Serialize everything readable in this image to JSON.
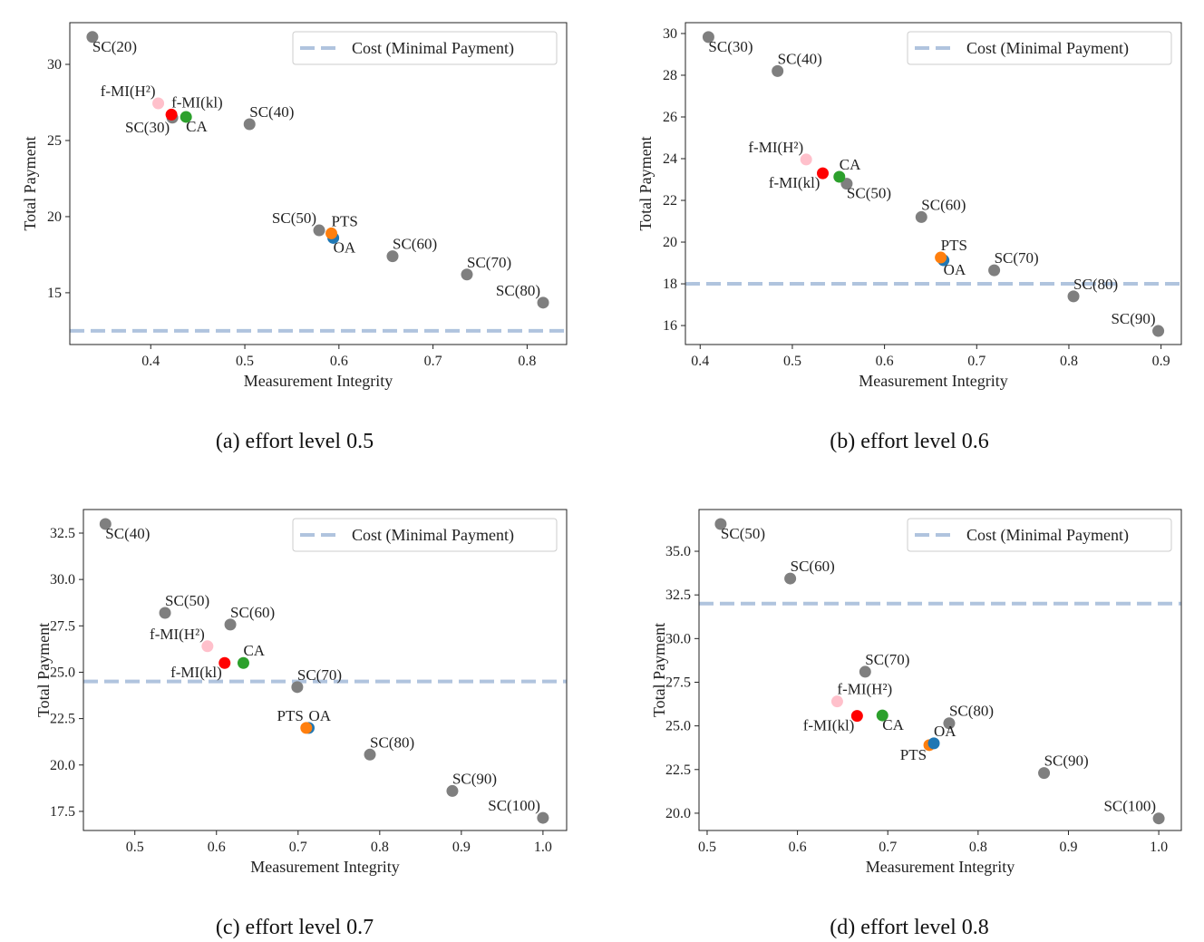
{
  "colors": {
    "SC": "#7f7f7f",
    "fMI_H2": "#ffc0cb",
    "fMI_kl": "#ff0000",
    "CA": "#2ca02c",
    "PTS": "#ff7f0e",
    "OA": "#1f77b4",
    "cost": "#b0c4de"
  },
  "chart_data": [
    {
      "type": "scatter",
      "caption": "(a)  effort level 0.5",
      "xlabel": "Measurement Integrity",
      "ylabel": "Total Payment",
      "xlim": [
        0.314,
        0.842
      ],
      "ylim": [
        11.6,
        32.74
      ],
      "xticks": [
        "0.4",
        "0.5",
        "0.6",
        "0.7",
        "0.8"
      ],
      "yticks": [
        "15",
        "20",
        "25",
        "30"
      ],
      "grid": false,
      "legend": {
        "label": "Cost (Minimal Payment)",
        "placement": "top-right"
      },
      "cost": 12.5,
      "points": [
        {
          "label": "SC(20)",
          "series": "SC",
          "x": 0.338,
          "y": 31.8
        },
        {
          "label": "SC(30)",
          "series": "SC",
          "x": 0.423,
          "y": 26.5
        },
        {
          "label": "SC(40)",
          "series": "SC",
          "x": 0.505,
          "y": 26.07
        },
        {
          "label": "SC(50)",
          "series": "SC",
          "x": 0.579,
          "y": 19.1
        },
        {
          "label": "SC(60)",
          "series": "SC",
          "x": 0.657,
          "y": 17.4
        },
        {
          "label": "SC(70)",
          "series": "SC",
          "x": 0.736,
          "y": 16.2
        },
        {
          "label": "SC(80)",
          "series": "SC",
          "x": 0.817,
          "y": 14.35
        },
        {
          "label": "f-MI(H²)",
          "series": "fMI_H2",
          "x": 0.408,
          "y": 27.44
        },
        {
          "label": "f-MI(kl)",
          "series": "fMI_kl",
          "x": 0.422,
          "y": 26.7
        },
        {
          "label": "CA",
          "series": "CA",
          "x": 0.4375,
          "y": 26.55
        },
        {
          "label": "OA",
          "series": "OA",
          "x": 0.594,
          "y": 18.6
        },
        {
          "label": "PTS",
          "series": "PTS",
          "x": 0.592,
          "y": 18.9
        }
      ]
    },
    {
      "type": "scatter",
      "caption": "(b)  effort level 0.6",
      "xlabel": "Measurement Integrity",
      "ylabel": "Total Payment",
      "xlim": [
        0.384,
        0.922
      ],
      "ylim": [
        15.09,
        30.52
      ],
      "xticks": [
        "0.4",
        "0.5",
        "0.6",
        "0.7",
        "0.8",
        "0.9"
      ],
      "yticks": [
        "16",
        "18",
        "20",
        "22",
        "24",
        "26",
        "28",
        "30"
      ],
      "grid": false,
      "legend": {
        "label": "Cost (Minimal Payment)",
        "placement": "top-right"
      },
      "cost": 18,
      "points": [
        {
          "label": "SC(30)",
          "series": "SC",
          "x": 0.409,
          "y": 29.83
        },
        {
          "label": "SC(40)",
          "series": "SC",
          "x": 0.484,
          "y": 28.2
        },
        {
          "label": "SC(50)",
          "series": "SC",
          "x": 0.559,
          "y": 22.8
        },
        {
          "label": "SC(60)",
          "series": "SC",
          "x": 0.64,
          "y": 21.2
        },
        {
          "label": "SC(70)",
          "series": "SC",
          "x": 0.719,
          "y": 18.65
        },
        {
          "label": "SC(80)",
          "series": "SC",
          "x": 0.805,
          "y": 17.4
        },
        {
          "label": "SC(90)",
          "series": "SC",
          "x": 0.897,
          "y": 15.74
        },
        {
          "label": "f-MI(H²)",
          "series": "fMI_H2",
          "x": 0.515,
          "y": 23.96
        },
        {
          "label": "f-MI(kl)",
          "series": "fMI_kl",
          "x": 0.533,
          "y": 23.3
        },
        {
          "label": "CA",
          "series": "CA",
          "x": 0.551,
          "y": 23.13
        },
        {
          "label": "OA",
          "series": "OA",
          "x": 0.664,
          "y": 19.13
        },
        {
          "label": "PTS",
          "series": "PTS",
          "x": 0.661,
          "y": 19.26
        }
      ]
    },
    {
      "type": "scatter",
      "caption": "(c)  effort level 0.7",
      "xlabel": "Measurement Integrity",
      "ylabel": "Total Payment",
      "xlim": [
        0.437,
        1.029
      ],
      "ylim": [
        16.47,
        33.77
      ],
      "xticks": [
        "0.5",
        "0.6",
        "0.7",
        "0.8",
        "0.9",
        "1.0"
      ],
      "yticks": [
        "17.5",
        "20.0",
        "22.5",
        "25.0",
        "27.5",
        "30.0",
        "32.5"
      ],
      "grid": false,
      "legend": {
        "label": "Cost (Minimal Payment)",
        "placement": "top-right"
      },
      "cost": 24.5,
      "points": [
        {
          "label": "SC(40)",
          "series": "SC",
          "x": 0.464,
          "y": 32.99
        },
        {
          "label": "SC(50)",
          "series": "SC",
          "x": 0.537,
          "y": 28.2
        },
        {
          "label": "SC(60)",
          "series": "SC",
          "x": 0.617,
          "y": 27.57
        },
        {
          "label": "SC(70)",
          "series": "SC",
          "x": 0.699,
          "y": 24.2
        },
        {
          "label": "SC(80)",
          "series": "SC",
          "x": 0.788,
          "y": 20.56
        },
        {
          "label": "SC(90)",
          "series": "SC",
          "x": 0.889,
          "y": 18.6
        },
        {
          "label": "SC(100)",
          "series": "SC",
          "x": 1.0,
          "y": 17.15
        },
        {
          "label": "f-MI(H²)",
          "series": "fMI_H2",
          "x": 0.589,
          "y": 26.4
        },
        {
          "label": "f-MI(kl)",
          "series": "fMI_kl",
          "x": 0.61,
          "y": 25.5
        },
        {
          "label": "CA",
          "series": "CA",
          "x": 0.633,
          "y": 25.5
        },
        {
          "label": "OA",
          "series": "OA",
          "x": 0.713,
          "y": 22.0
        },
        {
          "label": "PTS",
          "series": "PTS",
          "x": 0.71,
          "y": 22.0
        }
      ]
    },
    {
      "type": "scatter",
      "caption": "(d)  effort level 0.8",
      "xlabel": "Measurement Integrity",
      "ylabel": "Total Payment",
      "xlim": [
        0.491,
        1.025
      ],
      "ylim": [
        19.01,
        37.39
      ],
      "xticks": [
        "0.5",
        "0.6",
        "0.7",
        "0.8",
        "0.9",
        "1.0"
      ],
      "yticks": [
        "20.0",
        "22.5",
        "25.0",
        "27.5",
        "30.0",
        "32.5",
        "35.0"
      ],
      "grid": false,
      "legend": {
        "label": "Cost (Minimal Payment)",
        "placement": "top-right"
      },
      "cost": 32,
      "points": [
        {
          "label": "SC(50)",
          "series": "SC",
          "x": 0.515,
          "y": 36.56
        },
        {
          "label": "SC(60)",
          "series": "SC",
          "x": 0.592,
          "y": 33.44
        },
        {
          "label": "SC(70)",
          "series": "SC",
          "x": 0.675,
          "y": 28.1
        },
        {
          "label": "SC(80)",
          "series": "SC",
          "x": 0.768,
          "y": 25.15
        },
        {
          "label": "SC(90)",
          "series": "SC",
          "x": 0.873,
          "y": 22.3
        },
        {
          "label": "SC(100)",
          "series": "SC",
          "x": 1.0,
          "y": 19.7
        },
        {
          "label": "f-MI(H²)",
          "series": "fMI_H2",
          "x": 0.644,
          "y": 26.4
        },
        {
          "label": "f-MI(kl)",
          "series": "fMI_kl",
          "x": 0.666,
          "y": 25.57
        },
        {
          "label": "CA",
          "series": "CA",
          "x": 0.694,
          "y": 25.6
        },
        {
          "label": "PTS",
          "series": "PTS",
          "x": 0.746,
          "y": 23.9
        },
        {
          "label": "OA",
          "series": "OA",
          "x": 0.751,
          "y": 24.0
        }
      ]
    }
  ]
}
